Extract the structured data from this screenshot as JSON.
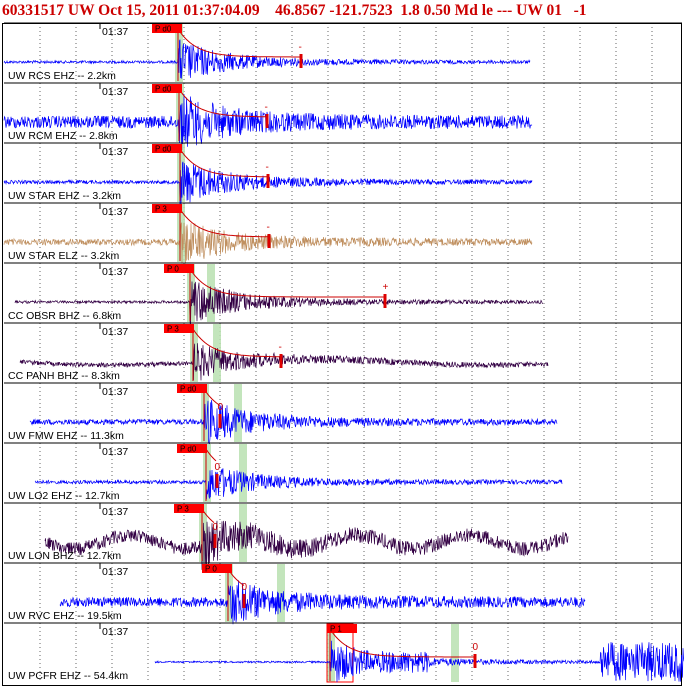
{
  "header": {
    "title": "60331517 UW Oct 15, 2011 01:37:04.09    46.8567 -121.7523  1.8 0.50 Md le --- UW 01   -1"
  },
  "chart_data": {
    "type": "seismogram-record-section",
    "time_label": "01:37",
    "traces": [
      {
        "label": "UW RCS EHZ -- 2.2km",
        "time": "01:37",
        "color": "#0000ff",
        "amp": 0.85,
        "noise": 0.06,
        "pick_label": "P d0",
        "coda_mark": "-",
        "green": [
          1
        ]
      },
      {
        "label": "UW RCM EHZ -- 2.8km",
        "time": "01:37",
        "color": "#0000ff",
        "amp": 0.95,
        "noise": 0.28,
        "pick_label": "P d0",
        "coda_mark": "-",
        "green": [
          1
        ]
      },
      {
        "label": "UW STAR EHZ -- 3.2km",
        "time": "01:37",
        "color": "#0000ff",
        "amp": 0.9,
        "noise": 0.08,
        "pick_label": "P d0",
        "coda_mark": "-",
        "green": [
          1
        ]
      },
      {
        "label": "UW STAR ELZ -- 3.2km",
        "time": "01:37",
        "color": "#c09060",
        "amp": 0.85,
        "noise": 0.14,
        "pick_label": "P 3",
        "coda_mark": "-",
        "green": [
          1
        ]
      },
      {
        "label": "CC OBSR BHZ -- 6.8km",
        "time": "01:37",
        "color": "#330044",
        "amp": 0.9,
        "noise": 0.06,
        "pick_label": "P 0",
        "coda_mark": "+",
        "green": [
          1,
          2
        ]
      },
      {
        "label": "CC PANH BHZ -- 8.3km",
        "time": "01:37",
        "color": "#330044",
        "amp": 0.7,
        "noise": 0.1,
        "pick_label": "P 3",
        "coda_mark": "-",
        "green": [
          1,
          2
        ]
      },
      {
        "label": "UW FMW EHZ -- 11.3km",
        "time": "01:37",
        "color": "#0000ff",
        "amp": 0.85,
        "noise": 0.12,
        "pick_label": "P d0",
        "coda_mark": "0",
        "green": [
          1,
          2
        ]
      },
      {
        "label": "UW LO2 EHZ -- 12.7km",
        "time": "01:37",
        "color": "#0000ff",
        "amp": 0.7,
        "noise": 0.08,
        "pick_label": "P d0",
        "coda_mark": "0",
        "green": [
          1,
          2
        ]
      },
      {
        "label": "UW LON BHZ -- 12.7km",
        "time": "01:37",
        "color": "#330044",
        "amp": 0.7,
        "noise": 0.3,
        "pick_label": "P 3",
        "coda_mark": "0",
        "green": [
          1,
          2
        ]
      },
      {
        "label": "UW RVC EHZ -- 19.5km",
        "time": "01:37",
        "color": "#0000ff",
        "amp": 0.8,
        "noise": 0.22,
        "pick_label": "P 0",
        "coda_mark": "0",
        "green": [
          1,
          2
        ]
      },
      {
        "label": "UW PCFR EHZ -- 54.4km",
        "time": "01:37",
        "color": "#0000ff",
        "amp": 0.85,
        "noise": 0.04,
        "pick_label": "P 1",
        "coda_mark": "0",
        "green": [
          1
        ]
      }
    ]
  }
}
